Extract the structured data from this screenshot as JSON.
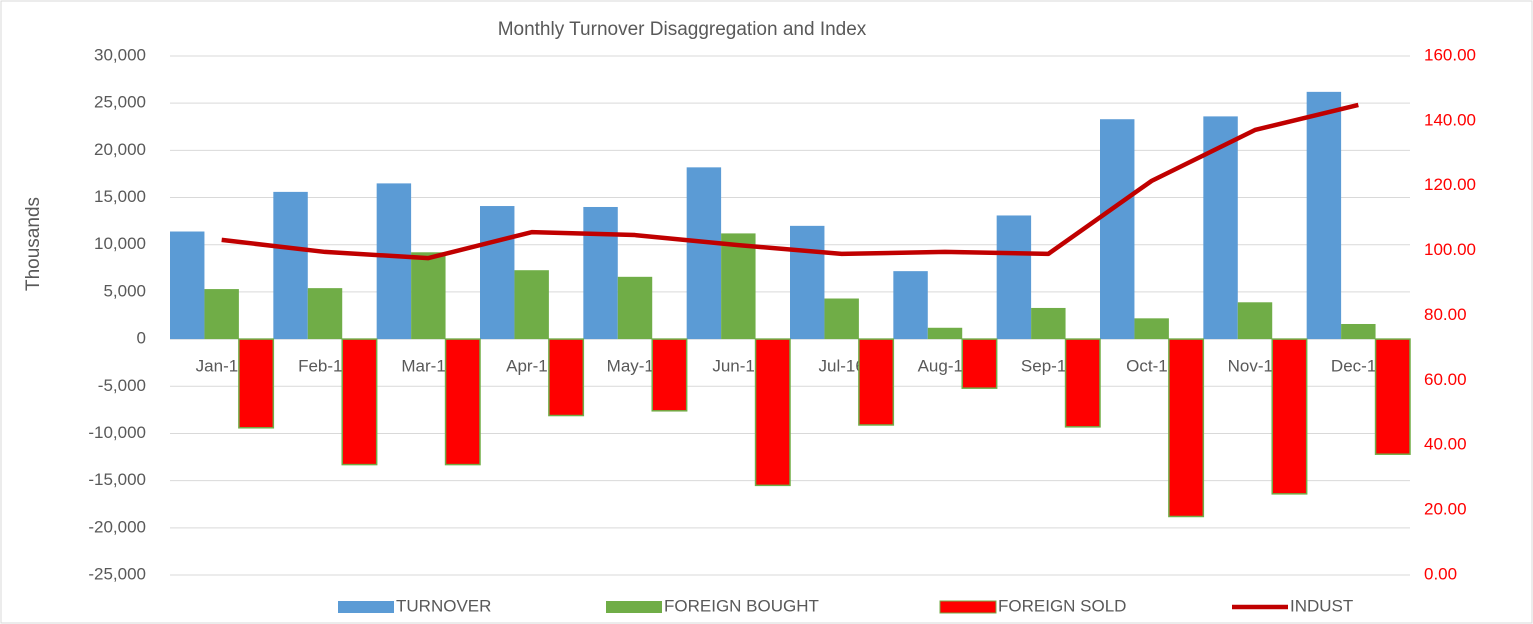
{
  "chart_data": {
    "type": "bar",
    "title": "Monthly Turnover Disaggregation and Index",
    "y_label": "Thousands",
    "categories": [
      "Jan-16",
      "Feb-16",
      "Mar-16",
      "Apr-16",
      "May-16",
      "Jun-16",
      "Jul-16",
      "Aug-16",
      "Sep-16",
      "Oct-16",
      "Nov-16",
      "Dec-16"
    ],
    "series": [
      {
        "name": "TURNOVER",
        "color": "#5b9bd5",
        "values": [
          11400,
          15600,
          16500,
          14100,
          14000,
          18200,
          12000,
          7200,
          13100,
          23300,
          23600,
          26200
        ]
      },
      {
        "name": "FOREIGN BOUGHT",
        "color": "#70ad47",
        "values": [
          5300,
          5400,
          9200,
          7300,
          6600,
          11200,
          4300,
          1200,
          3300,
          2200,
          3900,
          1600
        ]
      },
      {
        "name": "FOREIGN SOLD",
        "color": "#ff0000",
        "values": [
          -9400,
          -13300,
          -13300,
          -8100,
          -7600,
          -15500,
          -9100,
          -5200,
          -9300,
          -18800,
          -16400,
          -12200
        ]
      },
      {
        "name": "INDUST",
        "color": "#c00000",
        "type": "line",
        "axis": "y2",
        "values": [
          103.3,
          99.6,
          97.7,
          105.7,
          104.8,
          101.7,
          99.0,
          99.6,
          99.0,
          121.5,
          137.2,
          144.9
        ]
      }
    ],
    "ylim": [
      -25000,
      30000
    ],
    "yticks": [
      {
        "value": -25000,
        "label": "-25,000"
      },
      {
        "value": -20000,
        "label": "-20,000"
      },
      {
        "value": -15000,
        "label": "-15,000"
      },
      {
        "value": -10000,
        "label": "-10,000"
      },
      {
        "value": -5000,
        "label": "-5,000"
      },
      0,
      {
        "value": 5000,
        "label": "5,000"
      },
      {
        "value": 10000,
        "label": "10,000"
      },
      {
        "value": 15000,
        "label": "15,000"
      },
      {
        "value": 20000,
        "label": "20,000"
      },
      {
        "value": 25000,
        "label": "25,000"
      },
      {
        "value": 30000,
        "label": "30,000"
      }
    ],
    "y2lim": [
      0,
      160
    ],
    "y2ticks": [
      {
        "value": 0,
        "label": "0.00"
      },
      {
        "value": 20,
        "label": "20.00"
      },
      {
        "value": 40,
        "label": "40.00"
      },
      {
        "value": 60,
        "label": "60.00"
      },
      {
        "value": 80,
        "label": "80.00"
      },
      {
        "value": 100,
        "label": "100.00"
      },
      {
        "value": 120,
        "label": "120.00"
      },
      {
        "value": 140,
        "label": "140.00"
      },
      {
        "value": 160,
        "label": "160.00"
      }
    ],
    "y2_color": "#ff0000",
    "grid": true,
    "legend": "bottom"
  }
}
